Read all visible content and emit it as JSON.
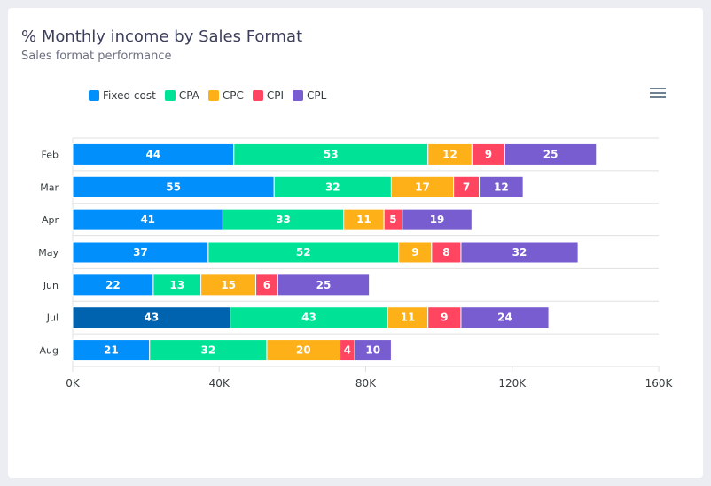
{
  "title": "% Monthly income by Sales Format",
  "subtitle": "Sales format performance",
  "menu_icon": "hamburger-menu-icon",
  "chart_data": {
    "type": "bar",
    "orientation": "horizontal",
    "stacked": true,
    "title": "% Monthly income by Sales Format",
    "subtitle": "Sales format performance",
    "categories": [
      "Feb",
      "Mar",
      "Apr",
      "May",
      "Jun",
      "Jul",
      "Aug"
    ],
    "unit_scale": 1000,
    "series": [
      {
        "name": "Fixed cost",
        "color": "#008ffb",
        "values": [
          44,
          55,
          41,
          37,
          22,
          43,
          21
        ]
      },
      {
        "name": "CPA",
        "color": "#00e396",
        "values": [
          53,
          32,
          33,
          52,
          13,
          43,
          32
        ]
      },
      {
        "name": "CPC",
        "color": "#feb019",
        "values": [
          12,
          17,
          11,
          9,
          15,
          11,
          20
        ]
      },
      {
        "name": "CPI",
        "color": "#ff4560",
        "values": [
          9,
          7,
          5,
          8,
          6,
          9,
          4
        ]
      },
      {
        "name": "CPL",
        "color": "#775dd0",
        "values": [
          25,
          12,
          19,
          32,
          25,
          24,
          10
        ]
      }
    ],
    "highlight": {
      "category": "Jul",
      "series": "Fixed cost",
      "color": "#0063b0"
    },
    "x_ticks": [
      "0K",
      "40K",
      "80K",
      "120K",
      "160K"
    ],
    "xlim": [
      0,
      160
    ],
    "legend": "top-left",
    "grid": true
  }
}
